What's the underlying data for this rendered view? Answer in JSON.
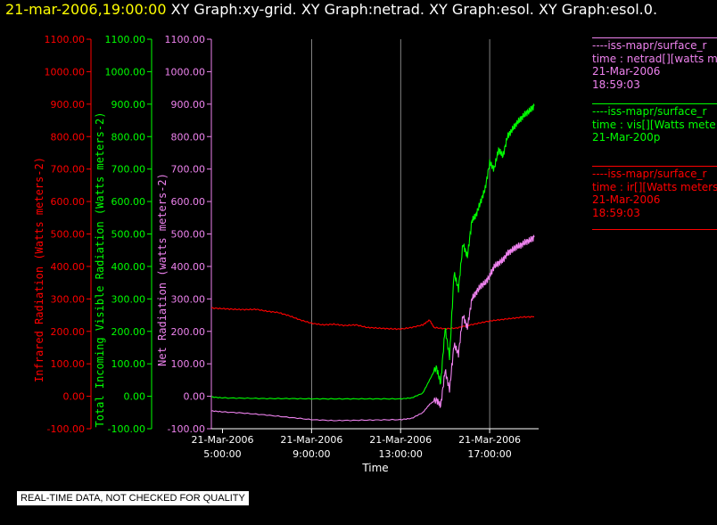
{
  "header": {
    "timestamp": "21-mar-2006,19:00:00",
    "graphs": "XY Graph:xy-grid.  XY Graph:netrad.  XY Graph:esol.  XY Graph:esol.0."
  },
  "colors": {
    "ir": "#ff0000",
    "vis": "#00ff00",
    "net": "#ee82ee",
    "grid": "#ffffff",
    "axis_x": "#ffffff"
  },
  "legend": [
    {
      "line1": "----iss-mapr/surface_r",
      "line2": "time : netrad[][watts m",
      "line3": "21-Mar-2006",
      "line4": "18:59:03",
      "color": "#ee82ee"
    },
    {
      "line1": "----iss-mapr/surface_r",
      "line2": "time : vis[][Watts mete",
      "line3": "21-Mar-200p",
      "line4": "",
      "color": "#00ff00"
    },
    {
      "line1": "----iss-mapr/surface_r",
      "line2": "time : ir[][Watts meters",
      "line3": "21-Mar-2006",
      "line4": "18:59:03",
      "color": "#ff0000"
    }
  ],
  "notice": "REAL-TIME DATA, NOT CHECKED FOR QUALITY",
  "chart_data": {
    "type": "line",
    "xlabel": "Time",
    "x_ticks": [
      {
        "date": "21-Mar-2006",
        "time": "5:00:00",
        "hour": 5
      },
      {
        "date": "21-Mar-2006",
        "time": "9:00:00",
        "hour": 9
      },
      {
        "date": "21-Mar-2006",
        "time": "13:00:00",
        "hour": 13
      },
      {
        "date": "21-Mar-2006",
        "time": "17:00:00",
        "hour": 17
      }
    ],
    "xlim_hours": [
      4.5,
      19.2
    ],
    "y_axes": [
      {
        "label": "Infrared Radiation (Watts meters-2)",
        "color": "#ff0000",
        "ticks": [
          "-100.00",
          "0.00",
          "100.00",
          "200.00",
          "300.00",
          "400.00",
          "500.00",
          "600.00",
          "700.00",
          "800.00",
          "900.00",
          "1000.00",
          "1100.00"
        ]
      },
      {
        "label": "Total Incoming Visible Radiation (Watts meters-2)",
        "color": "#00ff00",
        "ticks": [
          "-100.00",
          "0.00",
          "100.00",
          "200.00",
          "300.00",
          "400.00",
          "500.00",
          "600.00",
          "700.00",
          "800.00",
          "900.00",
          "1000.00",
          "1100.00"
        ]
      },
      {
        "label": "Net Radiation (watts meters-2)",
        "color": "#ee82ee",
        "ticks": [
          "-100.00",
          "0.00",
          "100.00",
          "200.00",
          "300.00",
          "400.00",
          "500.00",
          "600.00",
          "700.00",
          "800.00",
          "900.00",
          "1000.00",
          "1100.00"
        ]
      }
    ],
    "ylim": [
      -100,
      1100
    ],
    "grid": true,
    "series": [
      {
        "name": "ir",
        "color": "#ff0000",
        "x": [
          4.5,
          5,
          5.5,
          6,
          6.5,
          7,
          7.5,
          8,
          8.5,
          9,
          9.5,
          10,
          10.5,
          11,
          11.5,
          12,
          12.5,
          13,
          13.5,
          14,
          14.3,
          14.5,
          15,
          15.5,
          16,
          16.5,
          17,
          17.5,
          18,
          18.5,
          19
        ],
        "y": [
          272,
          270,
          268,
          267,
          268,
          262,
          258,
          248,
          235,
          225,
          220,
          222,
          218,
          220,
          212,
          210,
          208,
          207,
          212,
          220,
          235,
          212,
          208,
          210,
          218,
          225,
          232,
          236,
          240,
          244,
          245
        ]
      },
      {
        "name": "vis",
        "color": "#00ff00",
        "x": [
          4.5,
          5,
          6,
          7,
          8,
          9,
          10,
          11,
          12,
          13,
          13.5,
          14,
          14.3,
          14.6,
          14.8,
          15,
          15.2,
          15.4,
          15.6,
          15.8,
          16,
          16.2,
          16.4,
          16.6,
          16.8,
          17,
          17.2,
          17.4,
          17.6,
          17.8,
          18,
          18.2,
          18.4,
          18.6,
          18.8,
          19
        ],
        "y": [
          -2,
          -5,
          -6,
          -7,
          -7,
          -8,
          -8,
          -8,
          -8,
          -8,
          -5,
          10,
          50,
          90,
          40,
          210,
          120,
          380,
          330,
          470,
          430,
          540,
          560,
          600,
          640,
          720,
          700,
          760,
          740,
          800,
          820,
          840,
          855,
          870,
          880,
          895
        ]
      },
      {
        "name": "netrad",
        "color": "#ee82ee",
        "x": [
          4.5,
          5,
          6,
          7,
          8,
          9,
          10,
          11,
          12,
          13,
          13.5,
          14,
          14.3,
          14.6,
          14.8,
          15,
          15.2,
          15.4,
          15.6,
          15.8,
          16,
          16.2,
          16.4,
          16.6,
          16.8,
          17,
          17.2,
          17.4,
          17.6,
          17.8,
          18,
          18.2,
          18.4,
          18.6,
          18.8,
          19
        ],
        "y": [
          -45,
          -48,
          -52,
          -58,
          -65,
          -72,
          -75,
          -74,
          -73,
          -72,
          -68,
          -50,
          -25,
          -10,
          -30,
          80,
          20,
          160,
          130,
          250,
          210,
          300,
          320,
          340,
          350,
          370,
          400,
          410,
          420,
          440,
          450,
          460,
          465,
          475,
          480,
          490
        ]
      }
    ]
  }
}
